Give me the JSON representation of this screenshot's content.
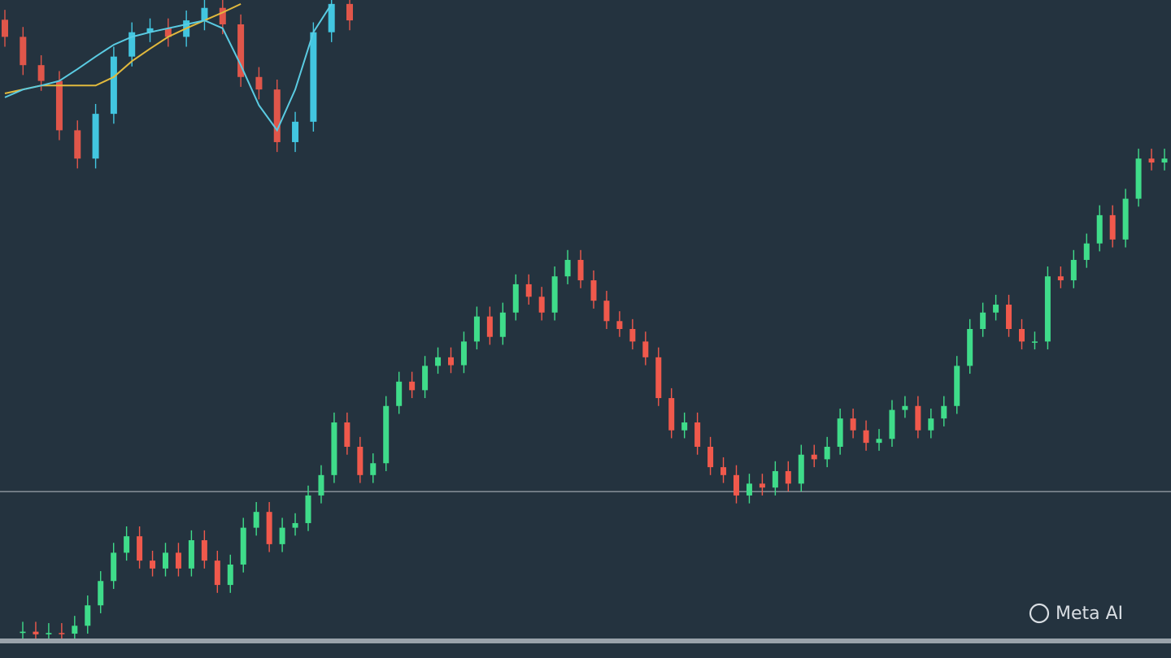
{
  "watermark": "Meta AI",
  "chart_data": [
    {
      "type": "candlestick",
      "up_color": "#3fdc8a",
      "down_color": "#f0594c",
      "ylim": [
        0,
        100
      ],
      "hlines": [
        25.3
      ],
      "open": [
        3.8,
        4.0,
        3.6,
        3.8,
        3.7,
        4.9,
        8.0,
        11.7,
        16.0,
        18.5,
        14.8,
        13.6,
        16.0,
        13.6,
        17.9,
        14.8,
        11.1,
        14.2,
        19.8,
        22.2,
        17.3,
        19.8,
        20.5,
        24.7,
        27.8,
        35.8,
        32.1,
        27.8,
        29.6,
        38.3,
        42.0,
        40.7,
        44.4,
        45.7,
        44.5,
        48.1,
        51.9,
        48.8,
        52.5,
        56.8,
        54.9,
        52.5,
        58.0,
        60.5,
        57.4,
        54.3,
        51.2,
        50.0,
        48.1,
        45.7,
        39.5,
        34.6,
        35.8,
        32.1,
        29.0,
        27.8,
        24.7,
        26.5,
        25.9,
        28.4,
        26.5,
        30.9,
        30.2,
        32.1,
        36.4,
        34.6,
        32.7,
        33.3,
        37.7,
        38.3,
        34.6,
        36.4,
        38.3,
        44.4,
        50.0,
        52.5,
        53.7,
        50.0,
        48.1,
        48.1,
        58.0,
        57.4,
        60.5,
        63.0,
        67.3,
        63.6,
        69.8,
        75.9,
        75.3
      ],
      "high": [
        5.5,
        5.5,
        5.3,
        5.3,
        6.4,
        9.5,
        13.2,
        17.5,
        20.0,
        20.0,
        16.3,
        17.5,
        17.5,
        19.4,
        19.4,
        16.3,
        15.7,
        21.3,
        23.7,
        23.7,
        21.3,
        22.0,
        26.2,
        29.3,
        37.3,
        37.3,
        33.6,
        31.1,
        39.8,
        43.5,
        43.5,
        45.9,
        47.2,
        47.2,
        49.6,
        53.4,
        53.4,
        54.0,
        58.3,
        58.3,
        56.4,
        59.5,
        62.0,
        62.0,
        58.9,
        55.8,
        52.7,
        51.5,
        49.6,
        47.2,
        41.0,
        37.3,
        37.3,
        33.6,
        30.5,
        29.3,
        28.0,
        28.0,
        29.9,
        29.9,
        32.4,
        32.4,
        33.6,
        37.9,
        37.9,
        36.1,
        34.8,
        39.2,
        39.8,
        39.8,
        37.9,
        39.8,
        45.9,
        51.5,
        54.0,
        55.2,
        55.2,
        51.5,
        49.6,
        59.5,
        59.5,
        62.0,
        64.5,
        68.8,
        68.8,
        71.3,
        77.4,
        77.4,
        77.4
      ],
      "low": [
        2.6,
        2.4,
        2.4,
        2.5,
        2.5,
        3.7,
        6.8,
        10.5,
        14.8,
        13.6,
        12.4,
        12.4,
        12.4,
        12.4,
        13.6,
        9.9,
        9.9,
        13.0,
        18.6,
        16.1,
        16.1,
        18.6,
        19.3,
        23.5,
        26.6,
        30.9,
        26.6,
        26.6,
        28.4,
        37.1,
        39.5,
        39.5,
        43.2,
        43.3,
        43.3,
        46.9,
        47.6,
        47.6,
        51.3,
        53.7,
        51.3,
        51.3,
        56.8,
        56.2,
        53.1,
        50.0,
        48.8,
        46.9,
        44.5,
        38.3,
        33.4,
        33.4,
        30.9,
        27.8,
        26.6,
        23.5,
        23.5,
        24.7,
        24.7,
        25.3,
        25.3,
        29.0,
        29.0,
        30.9,
        33.4,
        31.5,
        31.5,
        32.1,
        36.5,
        33.4,
        33.4,
        35.2,
        37.1,
        43.2,
        48.8,
        51.3,
        48.8,
        46.9,
        46.9,
        46.9,
        56.2,
        56.2,
        59.3,
        61.8,
        62.4,
        62.4,
        68.6,
        74.1,
        74.1
      ],
      "close": [
        4.0,
        3.6,
        3.8,
        3.7,
        4.9,
        8.0,
        11.7,
        16.0,
        18.5,
        14.8,
        13.6,
        16.0,
        13.6,
        17.9,
        14.8,
        11.1,
        14.2,
        19.8,
        22.2,
        17.3,
        19.8,
        20.5,
        24.7,
        27.8,
        35.8,
        32.1,
        27.8,
        29.6,
        38.3,
        42.0,
        40.7,
        44.4,
        45.7,
        44.5,
        48.1,
        51.9,
        48.8,
        52.5,
        56.8,
        54.9,
        52.5,
        58.0,
        60.5,
        57.4,
        54.3,
        51.2,
        50.0,
        48.1,
        45.7,
        39.5,
        34.6,
        35.8,
        32.1,
        29.0,
        27.8,
        24.7,
        26.5,
        25.9,
        28.4,
        26.5,
        30.9,
        30.2,
        32.1,
        36.4,
        34.6,
        32.7,
        33.3,
        37.7,
        38.3,
        34.6,
        36.4,
        38.3,
        44.4,
        50.0,
        52.5,
        53.7,
        50.0,
        48.1,
        48.1,
        58.0,
        57.4,
        60.5,
        63.0,
        67.3,
        63.6,
        69.8,
        75.9,
        75.3,
        75.9
      ]
    },
    {
      "type": "candlestick",
      "up_color": "#45d3ee",
      "down_color": "#f0594c",
      "ylim": [
        0,
        100
      ],
      "open": [
        97.0,
        94.4,
        90.1,
        87.7,
        80.2,
        75.9,
        82.7,
        91.4,
        95.1,
        95.7,
        94.4,
        96.9,
        98.8,
        96.3,
        88.3,
        86.4,
        78.4,
        81.5,
        95.1,
        99.4
      ],
      "high": [
        98.5,
        95.9,
        91.6,
        89.2,
        81.7,
        84.2,
        92.9,
        96.6,
        97.2,
        97.2,
        98.4,
        100.0,
        100.0,
        97.8,
        89.8,
        87.9,
        83.0,
        96.6,
        100.0,
        100.0
      ],
      "low": [
        92.9,
        88.6,
        86.2,
        78.7,
        74.4,
        74.4,
        81.2,
        89.9,
        93.6,
        92.9,
        92.9,
        95.4,
        94.8,
        86.8,
        84.9,
        76.9,
        76.9,
        80.0,
        93.6,
        95.4
      ],
      "close": [
        94.4,
        90.1,
        87.7,
        80.2,
        75.9,
        82.7,
        91.4,
        95.1,
        95.7,
        94.4,
        96.9,
        98.8,
        96.3,
        88.3,
        86.4,
        78.4,
        81.5,
        95.1,
        99.4,
        96.9
      ],
      "series": [
        {
          "color": "#f2c53d",
          "values": [
            85.8,
            86.4,
            87.0,
            87.0,
            87.0,
            87.0,
            88.3,
            90.7,
            92.6,
            94.4,
            95.7,
            96.9,
            98.1,
            99.4,
            null,
            null,
            null,
            null,
            null,
            null
          ]
        },
        {
          "color": "#5fd8f0",
          "values": [
            85.2,
            86.4,
            87.0,
            87.7,
            89.5,
            91.4,
            93.2,
            94.4,
            95.1,
            95.7,
            96.3,
            96.9,
            95.7,
            90.1,
            84.0,
            80.2,
            86.4,
            95.1,
            99.4,
            null
          ]
        }
      ]
    }
  ]
}
